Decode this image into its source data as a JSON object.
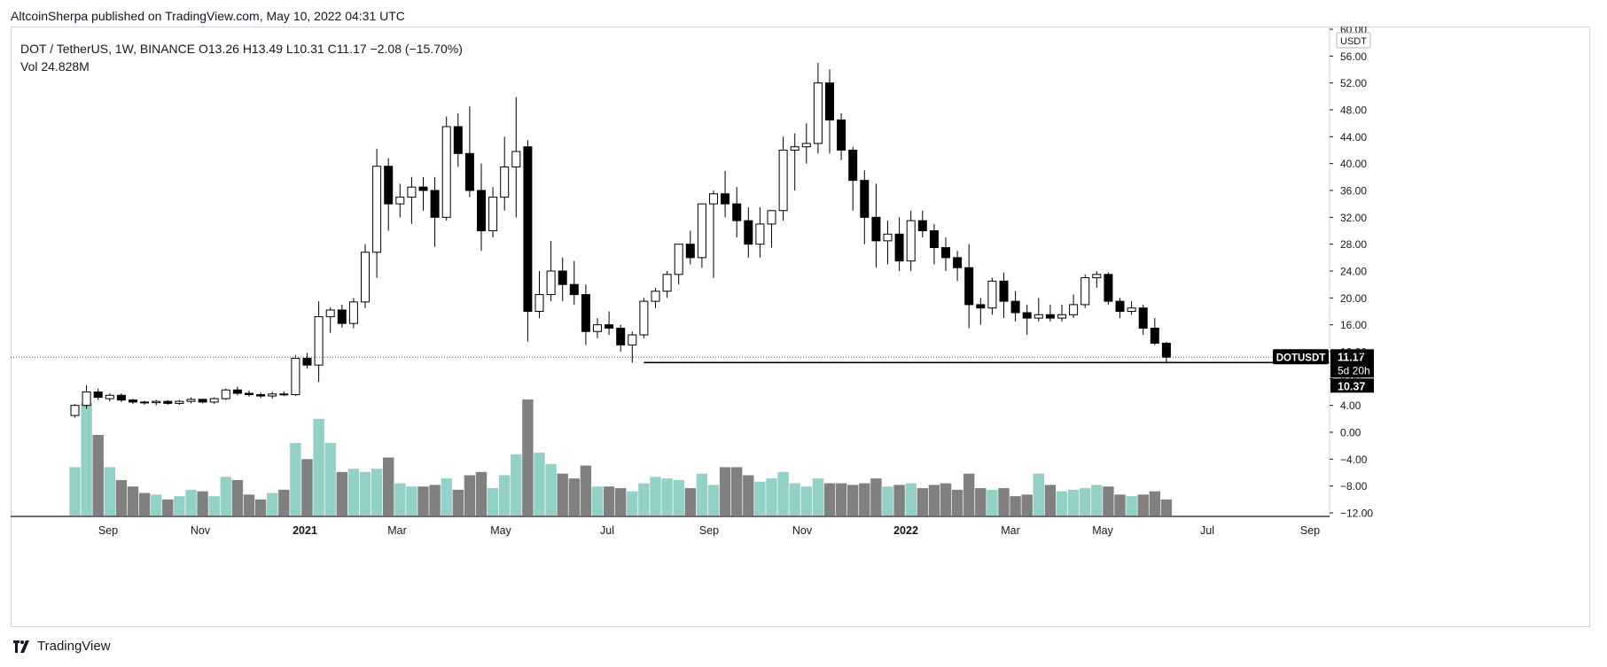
{
  "publisher": "AltcoinSherpa published on TradingView.com, May 10, 2022 04:31 UTC",
  "legend": {
    "symbol": "DOT / TetherUS, 1W, BINANCE",
    "open": "O13.26",
    "high": "H13.49",
    "low": "L10.31",
    "close": "C11.17",
    "change": "−2.08 (−15.70%)",
    "vol_label": "Vol",
    "vol_value": "24.828M"
  },
  "brand": {
    "name": "TradingView",
    "icon": "tradingview-logo-icon"
  },
  "price_labels": {
    "currency": "USDT",
    "symbol_tag": "DOTUSDT",
    "last": "11.17",
    "countdown": "5d 20h",
    "line_level": "10.37"
  },
  "colors": {
    "up_fill": "#ffffff",
    "down_fill": "#000000",
    "vol_up": "#93d0c8",
    "vol_down": "#808080",
    "axis": "#131722"
  },
  "chart_data": {
    "type": "candlestick",
    "interval": "1W",
    "ylim": [
      -12,
      60
    ],
    "y_ticks": [
      "60.00",
      "56.00",
      "52.00",
      "48.00",
      "44.00",
      "40.00",
      "36.00",
      "32.00",
      "28.00",
      "24.00",
      "20.00",
      "16.00",
      "12.00",
      "8.00",
      "4.00",
      "0.00",
      "−4.00",
      "−8.00",
      "−12.00"
    ],
    "x_ticks": [
      "Sep",
      "Nov",
      "2021",
      "Mar",
      "May",
      "Jul",
      "Sep",
      "Nov",
      "2022",
      "Mar",
      "May",
      "Jul",
      "Sep"
    ],
    "horizontal_line": {
      "level": 10.37,
      "from_index": 49,
      "to": "right-edge"
    },
    "candles": [
      {
        "o": 2.5,
        "h": 4.2,
        "l": 2.2,
        "c": 4.0,
        "v": 3
      },
      {
        "o": 4.0,
        "h": 7.0,
        "l": 3.5,
        "c": 6.0,
        "v": 7
      },
      {
        "o": 6.0,
        "h": 6.5,
        "l": 4.8,
        "c": 5.2,
        "v": 5
      },
      {
        "o": 5.0,
        "h": 5.8,
        "l": 4.6,
        "c": 5.5,
        "v": 3
      },
      {
        "o": 5.5,
        "h": 5.8,
        "l": 4.5,
        "c": 4.8,
        "v": 2.2
      },
      {
        "o": 4.8,
        "h": 5.0,
        "l": 4.2,
        "c": 4.5,
        "v": 1.8
      },
      {
        "o": 4.5,
        "h": 4.7,
        "l": 4.1,
        "c": 4.4,
        "v": 1.4
      },
      {
        "o": 4.4,
        "h": 4.8,
        "l": 4.0,
        "c": 4.6,
        "v": 1.3
      },
      {
        "o": 4.6,
        "h": 4.8,
        "l": 4.1,
        "c": 4.3,
        "v": 1.0
      },
      {
        "o": 4.3,
        "h": 4.8,
        "l": 4.1,
        "c": 4.6,
        "v": 1.2
      },
      {
        "o": 4.6,
        "h": 5.2,
        "l": 4.3,
        "c": 4.9,
        "v": 1.6
      },
      {
        "o": 4.9,
        "h": 5.0,
        "l": 4.3,
        "c": 4.5,
        "v": 1.5
      },
      {
        "o": 4.5,
        "h": 5.2,
        "l": 4.2,
        "c": 5.0,
        "v": 1.2
      },
      {
        "o": 5.0,
        "h": 6.5,
        "l": 4.8,
        "c": 6.3,
        "v": 2.4
      },
      {
        "o": 6.3,
        "h": 6.8,
        "l": 5.5,
        "c": 5.8,
        "v": 2.2
      },
      {
        "o": 5.8,
        "h": 6.2,
        "l": 5.3,
        "c": 5.6,
        "v": 1.3
      },
      {
        "o": 5.6,
        "h": 5.9,
        "l": 5.1,
        "c": 5.4,
        "v": 1.0
      },
      {
        "o": 5.4,
        "h": 6.0,
        "l": 5.0,
        "c": 5.7,
        "v": 1.4
      },
      {
        "o": 5.7,
        "h": 6.1,
        "l": 5.4,
        "c": 5.6,
        "v": 1.6
      },
      {
        "o": 5.6,
        "h": 11.5,
        "l": 5.4,
        "c": 11.0,
        "v": 4.5
      },
      {
        "o": 11.0,
        "h": 11.8,
        "l": 9.5,
        "c": 10.0,
        "v": 3.5
      },
      {
        "o": 10.0,
        "h": 19.5,
        "l": 7.5,
        "c": 17.2,
        "v": 6
      },
      {
        "o": 17.2,
        "h": 18.6,
        "l": 14.8,
        "c": 18.2,
        "v": 4.5
      },
      {
        "o": 18.2,
        "h": 19.0,
        "l": 15.6,
        "c": 16.2,
        "v": 2.7
      },
      {
        "o": 16.2,
        "h": 20.0,
        "l": 15.5,
        "c": 19.4,
        "v": 2.9
      },
      {
        "o": 19.4,
        "h": 28.0,
        "l": 18.5,
        "c": 26.8,
        "v": 2.7
      },
      {
        "o": 26.8,
        "h": 42.2,
        "l": 23.0,
        "c": 39.6,
        "v": 2.9
      },
      {
        "o": 39.6,
        "h": 40.8,
        "l": 30.0,
        "c": 34.0,
        "v": 3.6
      },
      {
        "o": 34.0,
        "h": 37.0,
        "l": 32.0,
        "c": 35.0,
        "v": 2.0
      },
      {
        "o": 35.0,
        "h": 38.0,
        "l": 31.0,
        "c": 36.5,
        "v": 1.8
      },
      {
        "o": 36.5,
        "h": 38.0,
        "l": 33.0,
        "c": 36.0,
        "v": 1.8
      },
      {
        "o": 36.0,
        "h": 38.0,
        "l": 27.6,
        "c": 32.0,
        "v": 1.9
      },
      {
        "o": 32.0,
        "h": 47.0,
        "l": 31.5,
        "c": 45.5,
        "v": 2.3
      },
      {
        "o": 45.5,
        "h": 47.5,
        "l": 39.5,
        "c": 41.5,
        "v": 1.6
      },
      {
        "o": 41.5,
        "h": 48.5,
        "l": 35.0,
        "c": 36.0,
        "v": 2.5
      },
      {
        "o": 36.0,
        "h": 40.0,
        "l": 27.0,
        "c": 30.0,
        "v": 2.7
      },
      {
        "o": 30.0,
        "h": 36.5,
        "l": 29.0,
        "c": 35.0,
        "v": 1.7
      },
      {
        "o": 35.0,
        "h": 44.0,
        "l": 33.0,
        "c": 39.5,
        "v": 2.5
      },
      {
        "o": 39.5,
        "h": 49.9,
        "l": 32.0,
        "c": 41.8,
        "v": 3.8
      },
      {
        "o": 42.5,
        "h": 43.5,
        "l": 13.5,
        "c": 18.0,
        "v": 7.2
      },
      {
        "o": 18.0,
        "h": 24.0,
        "l": 17.0,
        "c": 20.5,
        "v": 3.9
      },
      {
        "o": 20.5,
        "h": 28.5,
        "l": 19.5,
        "c": 24.0,
        "v": 3.2
      },
      {
        "o": 24.0,
        "h": 26.0,
        "l": 19.5,
        "c": 22.0,
        "v": 2.6
      },
      {
        "o": 22.0,
        "h": 25.5,
        "l": 19.0,
        "c": 20.5,
        "v": 2.3
      },
      {
        "o": 20.5,
        "h": 22.0,
        "l": 13.0,
        "c": 15.0,
        "v": 3.1
      },
      {
        "o": 15.0,
        "h": 17.0,
        "l": 14.0,
        "c": 16.0,
        "v": 1.8
      },
      {
        "o": 16.0,
        "h": 18.0,
        "l": 14.5,
        "c": 15.5,
        "v": 1.8
      },
      {
        "o": 15.5,
        "h": 16.0,
        "l": 12.0,
        "c": 13.0,
        "v": 1.7
      },
      {
        "o": 13.0,
        "h": 15.0,
        "l": 10.37,
        "c": 14.5,
        "v": 1.5
      },
      {
        "o": 14.5,
        "h": 20.0,
        "l": 14.0,
        "c": 19.5,
        "v": 2.0
      },
      {
        "o": 19.5,
        "h": 21.5,
        "l": 18.5,
        "c": 21.0,
        "v": 2.4
      },
      {
        "o": 21.0,
        "h": 24.0,
        "l": 20.0,
        "c": 23.5,
        "v": 2.3
      },
      {
        "o": 23.5,
        "h": 28.0,
        "l": 22.0,
        "c": 28.0,
        "v": 2.2
      },
      {
        "o": 28.0,
        "h": 30.0,
        "l": 25.0,
        "c": 26.0,
        "v": 1.7
      },
      {
        "o": 26.0,
        "h": 34.0,
        "l": 24.5,
        "c": 34.0,
        "v": 2.6
      },
      {
        "o": 34.0,
        "h": 36.0,
        "l": 23.0,
        "c": 35.5,
        "v": 1.9
      },
      {
        "o": 35.5,
        "h": 38.9,
        "l": 32.0,
        "c": 34.0,
        "v": 3.0
      },
      {
        "o": 34.0,
        "h": 36.5,
        "l": 29.0,
        "c": 31.5,
        "v": 3.0
      },
      {
        "o": 31.5,
        "h": 33.5,
        "l": 26.0,
        "c": 28.0,
        "v": 2.5
      },
      {
        "o": 28.0,
        "h": 33.5,
        "l": 26.0,
        "c": 31.0,
        "v": 2.1
      },
      {
        "o": 31.0,
        "h": 33.0,
        "l": 27.5,
        "c": 33.0,
        "v": 2.3
      },
      {
        "o": 33.0,
        "h": 44.0,
        "l": 31.5,
        "c": 42.0,
        "v": 2.7
      },
      {
        "o": 42.0,
        "h": 44.5,
        "l": 36.0,
        "c": 42.5,
        "v": 2.0
      },
      {
        "o": 42.5,
        "h": 46.0,
        "l": 40.0,
        "c": 43.0,
        "v": 1.8
      },
      {
        "o": 43.0,
        "h": 55.0,
        "l": 41.5,
        "c": 52.0,
        "v": 2.3
      },
      {
        "o": 52.0,
        "h": 54.0,
        "l": 41.5,
        "c": 46.5,
        "v": 2.0
      },
      {
        "o": 46.5,
        "h": 47.5,
        "l": 40.5,
        "c": 42.0,
        "v": 2.0
      },
      {
        "o": 42.0,
        "h": 42.5,
        "l": 33.0,
        "c": 37.5,
        "v": 1.9
      },
      {
        "o": 37.5,
        "h": 39.0,
        "l": 28.0,
        "c": 32.0,
        "v": 2.0
      },
      {
        "o": 32.0,
        "h": 37.0,
        "l": 24.5,
        "c": 28.5,
        "v": 2.3
      },
      {
        "o": 28.5,
        "h": 31.5,
        "l": 25.0,
        "c": 29.5,
        "v": 1.8
      },
      {
        "o": 29.5,
        "h": 32.0,
        "l": 24.0,
        "c": 25.5,
        "v": 1.9
      },
      {
        "o": 25.5,
        "h": 33.0,
        "l": 24.0,
        "c": 31.5,
        "v": 2.0
      },
      {
        "o": 31.5,
        "h": 33.0,
        "l": 29.0,
        "c": 30.0,
        "v": 1.7
      },
      {
        "o": 30.0,
        "h": 31.0,
        "l": 25.0,
        "c": 27.5,
        "v": 1.9
      },
      {
        "o": 27.5,
        "h": 29.0,
        "l": 24.0,
        "c": 26.0,
        "v": 2.0
      },
      {
        "o": 26.0,
        "h": 27.0,
        "l": 22.5,
        "c": 24.5,
        "v": 1.6
      },
      {
        "o": 24.5,
        "h": 28.0,
        "l": 15.5,
        "c": 19.0,
        "v": 2.6
      },
      {
        "o": 19.0,
        "h": 20.0,
        "l": 16.0,
        "c": 18.5,
        "v": 1.7
      },
      {
        "o": 18.5,
        "h": 23.0,
        "l": 17.5,
        "c": 22.5,
        "v": 1.6
      },
      {
        "o": 22.5,
        "h": 23.8,
        "l": 17.0,
        "c": 19.5,
        "v": 1.7
      },
      {
        "o": 19.5,
        "h": 21.0,
        "l": 16.5,
        "c": 17.8,
        "v": 1.2
      },
      {
        "o": 17.8,
        "h": 19.0,
        "l": 14.5,
        "c": 17.0,
        "v": 1.3
      },
      {
        "o": 17.0,
        "h": 20.0,
        "l": 16.5,
        "c": 17.5,
        "v": 2.6
      },
      {
        "o": 17.5,
        "h": 19.0,
        "l": 16.5,
        "c": 17.0,
        "v": 1.9
      },
      {
        "o": 17.0,
        "h": 19.0,
        "l": 16.5,
        "c": 17.5,
        "v": 1.5
      },
      {
        "o": 17.5,
        "h": 20.5,
        "l": 17.0,
        "c": 19.0,
        "v": 1.6
      },
      {
        "o": 19.0,
        "h": 23.5,
        "l": 18.5,
        "c": 23.0,
        "v": 1.7
      },
      {
        "o": 23.0,
        "h": 24.0,
        "l": 21.5,
        "c": 23.5,
        "v": 1.9
      },
      {
        "o": 23.5,
        "h": 23.8,
        "l": 19.0,
        "c": 19.5,
        "v": 1.8
      },
      {
        "o": 19.5,
        "h": 20.0,
        "l": 17.0,
        "c": 18.0,
        "v": 1.3
      },
      {
        "o": 18.0,
        "h": 19.5,
        "l": 17.5,
        "c": 18.5,
        "v": 1.2
      },
      {
        "o": 18.5,
        "h": 19.0,
        "l": 14.5,
        "c": 15.5,
        "v": 1.3
      },
      {
        "o": 15.5,
        "h": 17.0,
        "l": 13.0,
        "c": 13.26,
        "v": 1.5
      },
      {
        "o": 13.26,
        "h": 13.49,
        "l": 10.31,
        "c": 11.17,
        "v": 1.0
      }
    ]
  }
}
